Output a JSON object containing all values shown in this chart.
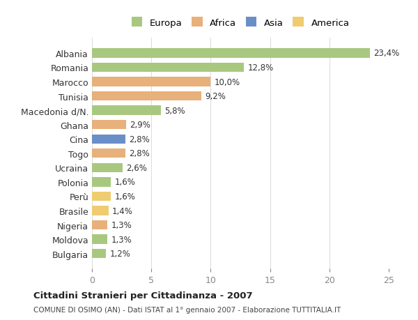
{
  "countries": [
    "Albania",
    "Romania",
    "Marocco",
    "Tunisia",
    "Macedonia d/N.",
    "Ghana",
    "Cina",
    "Togo",
    "Ucraina",
    "Polonia",
    "Perù",
    "Brasile",
    "Nigeria",
    "Moldova",
    "Bulgaria"
  ],
  "values": [
    23.4,
    12.8,
    10.0,
    9.2,
    5.8,
    2.9,
    2.8,
    2.8,
    2.6,
    1.6,
    1.6,
    1.4,
    1.3,
    1.3,
    1.2
  ],
  "labels": [
    "23,4%",
    "12,8%",
    "10,0%",
    "9,2%",
    "5,8%",
    "2,9%",
    "2,8%",
    "2,8%",
    "2,6%",
    "1,6%",
    "1,6%",
    "1,4%",
    "1,3%",
    "1,3%",
    "1,2%"
  ],
  "continents": [
    "Europa",
    "Europa",
    "Africa",
    "Africa",
    "Europa",
    "Africa",
    "Asia",
    "Africa",
    "Europa",
    "Europa",
    "America",
    "America",
    "Africa",
    "Europa",
    "Europa"
  ],
  "colors": {
    "Europa": "#a8c880",
    "Africa": "#e8b07a",
    "Asia": "#6a8fc8",
    "America": "#f0cc70"
  },
  "legend_order": [
    "Europa",
    "Africa",
    "Asia",
    "America"
  ],
  "title": "Cittadini Stranieri per Cittadinanza - 2007",
  "subtitle": "COMUNE DI OSIMO (AN) - Dati ISTAT al 1° gennaio 2007 - Elaborazione TUTTITALIA.IT",
  "xlim": [
    0,
    25
  ],
  "xticks": [
    0,
    5,
    10,
    15,
    20,
    25
  ],
  "background_color": "#ffffff",
  "grid_color": "#dddddd"
}
